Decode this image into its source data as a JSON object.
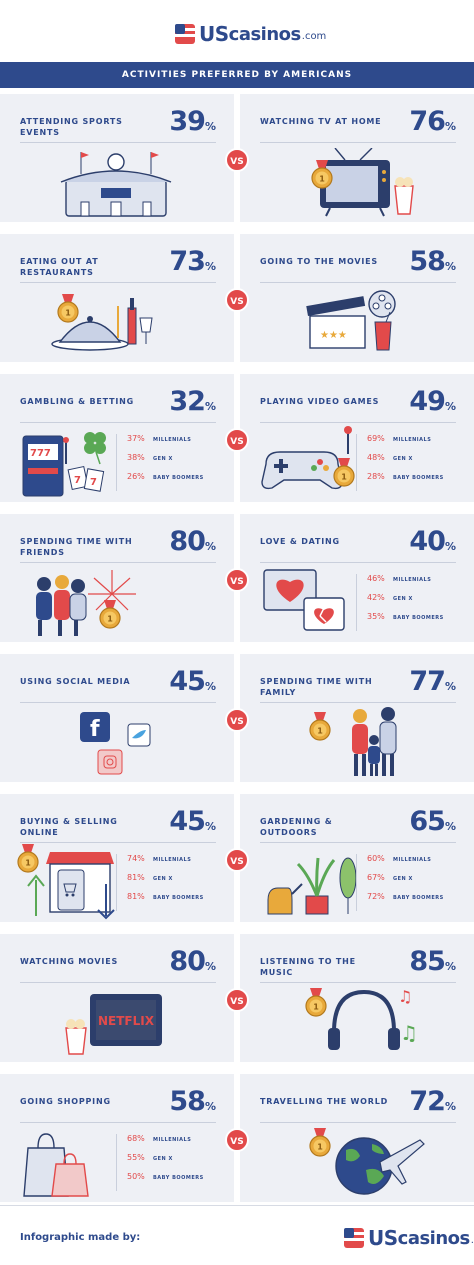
{
  "brand": {
    "us": "US",
    "casinos": "casinos",
    "dotcom": ".com"
  },
  "banner": "ACTIVITIES PREFERRED BY AMERICANS",
  "vs_label": "VS",
  "pct_sign": "%",
  "rows": [
    {
      "left": {
        "title": "ATTENDING SPORTS EVENTS",
        "pct": "39",
        "icon": "stadium-icon"
      },
      "right": {
        "title": "WATCHING TV AT HOME",
        "pct": "76",
        "icon": "tv-icon"
      }
    },
    {
      "left": {
        "title": "EATING OUT AT RESTAURANTS",
        "pct": "73",
        "icon": "dining-icon"
      },
      "right": {
        "title": "GOING TO THE MOVIES",
        "pct": "58",
        "icon": "clapperboard-icon"
      }
    },
    {
      "left": {
        "title": "GAMBLING & BETTING",
        "pct": "32",
        "icon": "slot-machine-icon",
        "gens": [
          {
            "p": "37%",
            "l": "MILLENIALS"
          },
          {
            "p": "38%",
            "l": "GEN X"
          },
          {
            "p": "26%",
            "l": "BABY BOOMERS"
          }
        ]
      },
      "right": {
        "title": "PLAYING VIDEO GAMES",
        "pct": "49",
        "icon": "gamepad-icon",
        "gens": [
          {
            "p": "69%",
            "l": "MILLENIALS"
          },
          {
            "p": "48%",
            "l": "GEN X"
          },
          {
            "p": "28%",
            "l": "BABY BOOMERS"
          }
        ]
      }
    },
    {
      "left": {
        "title": "SPENDING TIME WITH FRIENDS",
        "pct": "80",
        "icon": "friends-icon"
      },
      "right": {
        "title": "LOVE & DATING",
        "pct": "40",
        "icon": "hearts-icon",
        "gens": [
          {
            "p": "46%",
            "l": "MILLENIALS"
          },
          {
            "p": "42%",
            "l": "GEN X"
          },
          {
            "p": "35%",
            "l": "BABY BOOMERS"
          }
        ]
      }
    },
    {
      "left": {
        "title": "USING SOCIAL MEDIA",
        "pct": "45",
        "icon": "social-media-icon"
      },
      "right": {
        "title": "SPENDING TIME WITH FAMILY",
        "pct": "77",
        "icon": "family-icon"
      }
    },
    {
      "left": {
        "title": "BUYING & SELLING ONLINE",
        "pct": "45",
        "icon": "online-shop-icon",
        "gens": [
          {
            "p": "74%",
            "l": "MILLENIALS"
          },
          {
            "p": "81%",
            "l": "GEN X"
          },
          {
            "p": "81%",
            "l": "BABY BOOMERS"
          }
        ]
      },
      "right": {
        "title": "GARDENING & OUTDOORS",
        "pct": "65",
        "icon": "plants-icon",
        "gens": [
          {
            "p": "60%",
            "l": "MILLENIALS"
          },
          {
            "p": "67%",
            "l": "GEN X"
          },
          {
            "p": "72%",
            "l": "BABY BOOMERS"
          }
        ]
      }
    },
    {
      "left": {
        "title": "WATCHING MOVIES",
        "pct": "80",
        "icon": "netflix-tv-icon",
        "screen_text": "NETFLIX"
      },
      "right": {
        "title": "LISTENING TO THE MUSIC",
        "pct": "85",
        "icon": "headphones-icon"
      }
    },
    {
      "left": {
        "title": "GOING SHOPPING",
        "pct": "58",
        "icon": "shopping-bags-icon",
        "gens": [
          {
            "p": "68%",
            "l": "MILLENIALS"
          },
          {
            "p": "55%",
            "l": "GEN X"
          },
          {
            "p": "50%",
            "l": "BABY BOOMERS"
          }
        ]
      },
      "right": {
        "title": "TRAVELLING THE WORLD",
        "pct": "72",
        "icon": "globe-plane-icon"
      }
    }
  ],
  "footer": {
    "made_by": "Infographic made by:"
  },
  "colors": {
    "navy": "#2e4a8c",
    "red": "#e24a4a",
    "card": "#eef0f5",
    "gold": "#e8a93b"
  }
}
